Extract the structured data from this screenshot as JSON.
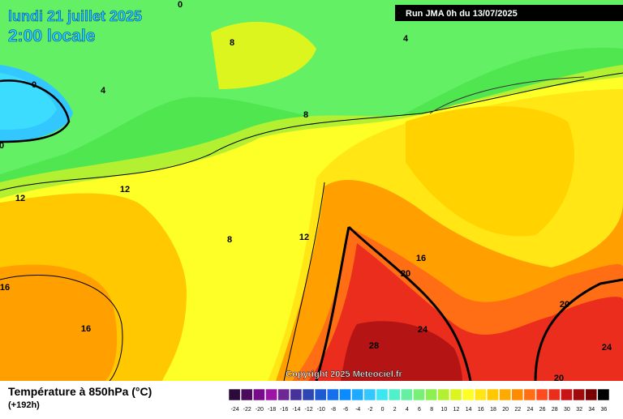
{
  "header": {
    "date": "lundi 21 juillet 2025",
    "time": "2:00 locale",
    "run": "Run JMA 0h du 13/07/2025"
  },
  "copyright": "Copyright 2025 Meteociel.fr",
  "footer": {
    "title": "Température à 850hPa (°C)",
    "lead": "(+192h)"
  },
  "legend": {
    "labels": [
      -24,
      -22,
      -20,
      -18,
      -16,
      -14,
      -12,
      -10,
      -8,
      -6,
      -4,
      -2,
      0,
      2,
      4,
      6,
      8,
      10,
      12,
      14,
      16,
      18,
      20,
      22,
      24,
      26,
      28,
      30,
      32,
      34,
      36
    ],
    "colors": [
      "#2d0a3c",
      "#4b0a5a",
      "#7a0a8c",
      "#9b14a5",
      "#6e2896",
      "#46329b",
      "#2d46b4",
      "#1e5ad2",
      "#1470ec",
      "#0a8cff",
      "#1eaaff",
      "#32c8ff",
      "#3ce6f0",
      "#50f0c8",
      "#64f0a0",
      "#78f078",
      "#8cf050",
      "#b4f032",
      "#dcf51e",
      "#ffff28",
      "#ffe614",
      "#ffc800",
      "#ffaa00",
      "#ff8c00",
      "#ff6e14",
      "#ff4b1e",
      "#eb2d1e",
      "#c81414",
      "#a00a0a",
      "#780000",
      "#000000"
    ]
  },
  "map": {
    "contour_labels": [
      0,
      8,
      4,
      0,
      4,
      8,
      0,
      12,
      12,
      8,
      12,
      16,
      16,
      16,
      20,
      20,
      24,
      24,
      28,
      20
    ]
  }
}
